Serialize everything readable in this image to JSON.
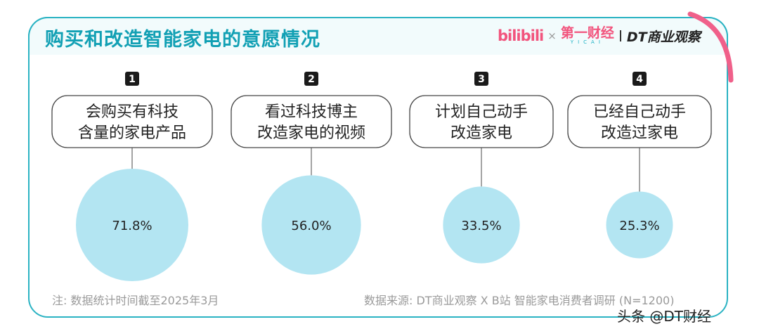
{
  "header": {
    "title": "购买和改造智能家电的意愿情况",
    "logo_bili": "bilibili",
    "logo_x": "×",
    "logo_cbn": "第一财经",
    "logo_cbn_sub": "YICAI",
    "logo_dt": "DT商业观察"
  },
  "chart_data": {
    "type": "bubble",
    "title": "购买和改造智能家电的意愿情况",
    "unit": "%",
    "items": [
      {
        "rank": "1",
        "label_lines": [
          "会购买有科技",
          "含量的家电产品"
        ],
        "value": 71.8,
        "value_label": "71.8%"
      },
      {
        "rank": "2",
        "label_lines": [
          "看过科技博主",
          "改造家电的视频"
        ],
        "value": 56.0,
        "value_label": "56.0%"
      },
      {
        "rank": "3",
        "label_lines": [
          "计划自己动手",
          "改造家电"
        ],
        "value": 33.5,
        "value_label": "33.5%"
      },
      {
        "rank": "4",
        "label_lines": [
          "已经自己动手",
          "改造过家电"
        ],
        "value": 25.3,
        "value_label": "25.3%"
      }
    ]
  },
  "footer": {
    "note": "注: 数据统计时间截至2025年3月",
    "source": "数据来源: DT商业观察 X B站 智能家电消费者调研 (N=1200)",
    "watermark": "头条 @DT财经"
  },
  "colors": {
    "accent": "#12a0b4",
    "border": "#2bb3c3",
    "bubble": "#b3e5f2",
    "brand_pink": "#f2547d"
  }
}
